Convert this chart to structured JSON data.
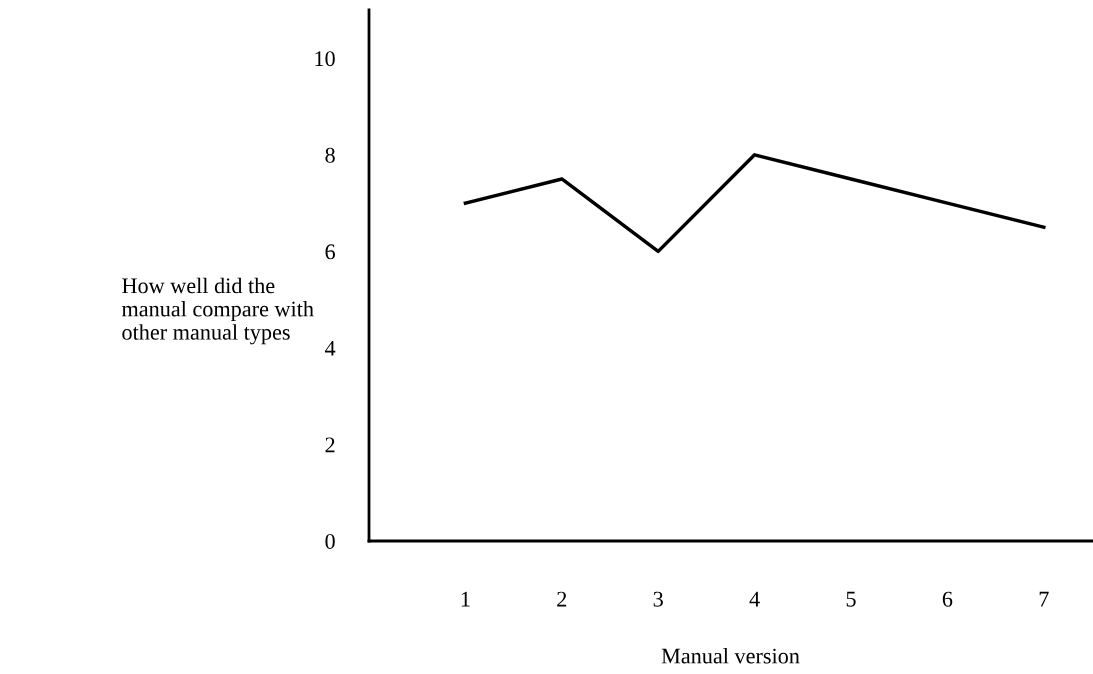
{
  "chart_data": {
    "type": "line",
    "xlabel": "Manual version",
    "ylabel": "How well did the\nmanual compare with\nother manual types",
    "x": [
      1,
      2,
      3,
      4,
      5,
      6,
      7
    ],
    "series": [
      {
        "color": "#000000",
        "values": [
          7,
          7.5,
          6,
          8,
          7.5,
          7,
          6.5
        ]
      }
    ],
    "xlim": [
      0,
      7.5
    ],
    "xticks": [
      1,
      2,
      3,
      4,
      5,
      6,
      7
    ],
    "ylim": [
      0,
      11
    ],
    "yticks": [
      0,
      2,
      4,
      6,
      8,
      10
    ],
    "grid": false,
    "legend": false,
    "marker": "none",
    "line_style": "solid"
  }
}
